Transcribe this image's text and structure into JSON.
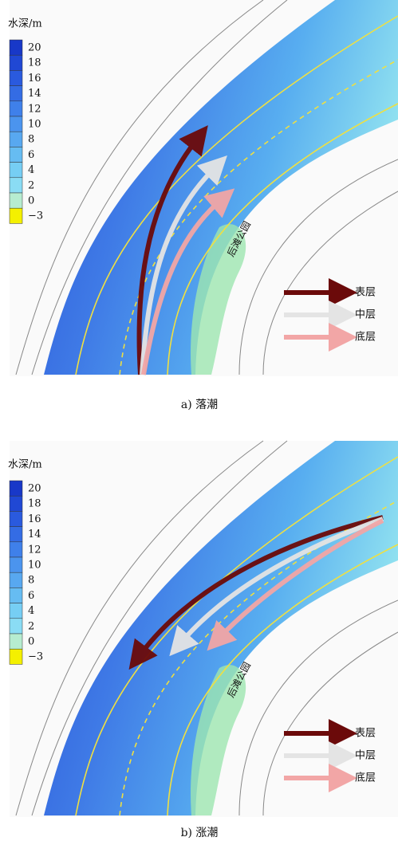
{
  "panels": [
    {
      "colorbar": {
        "title": "水深/m",
        "labels": [
          "20",
          "18",
          "16",
          "14",
          "12",
          "10",
          "8",
          "6",
          "4",
          "2",
          "0",
          "−3"
        ]
      },
      "park_label": "后滩公园",
      "legend": [
        "表层",
        "中层",
        "底层"
      ],
      "caption": "a) 落潮"
    },
    {
      "colorbar": {
        "title": "水深/m",
        "labels": [
          "20",
          "18",
          "16",
          "14",
          "12",
          "10",
          "8",
          "6",
          "4",
          "2",
          "0",
          "−3"
        ]
      },
      "park_label": "后滩公园",
      "legend": [
        "表层",
        "中层",
        "底层"
      ],
      "caption": "b) 涨潮"
    }
  ]
}
